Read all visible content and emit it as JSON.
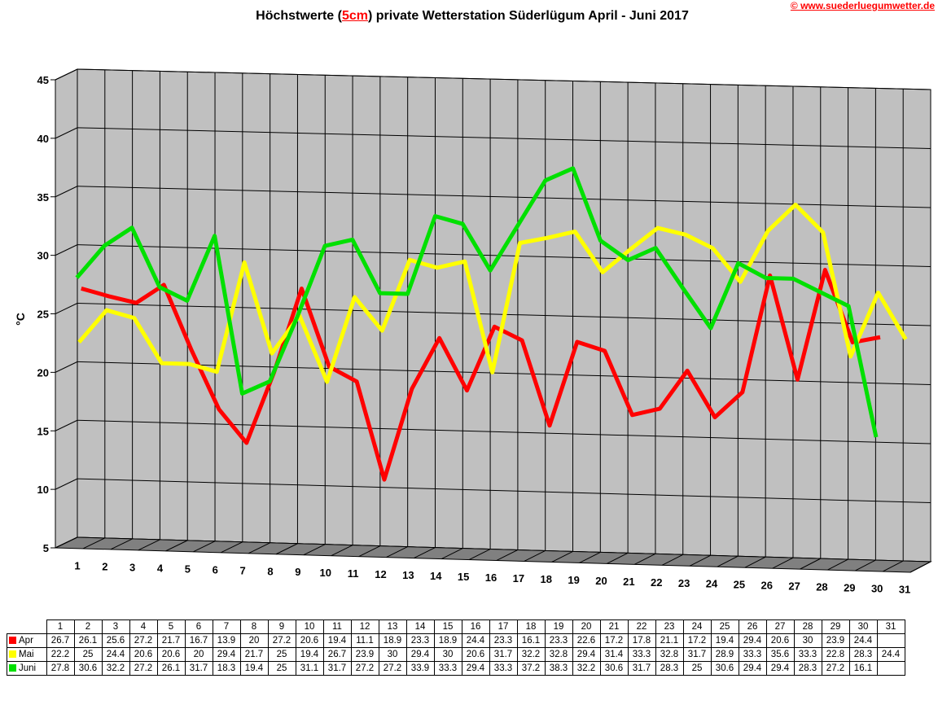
{
  "title_parts": {
    "before": "Höchstwerte (",
    "highlight": "5cm",
    "after": ") private Wetterstation Süderlügum April - Juni 2017"
  },
  "copyright": "© www.suederluegumwetter.de",
  "chart_data": {
    "type": "line",
    "title": "Höchstwerte (5cm) private Wetterstation Süderlügum April - Juni 2017",
    "ylabel": "°C",
    "xlabel": "",
    "ylim": [
      5,
      45
    ],
    "yticks": [
      5,
      10,
      15,
      20,
      25,
      30,
      35,
      40,
      45
    ],
    "grid": true,
    "categories": [
      "1",
      "2",
      "3",
      "4",
      "5",
      "6",
      "7",
      "8",
      "9",
      "10",
      "11",
      "12",
      "13",
      "14",
      "15",
      "16",
      "17",
      "18",
      "19",
      "20",
      "21",
      "22",
      "23",
      "24",
      "25",
      "26",
      "27",
      "28",
      "29",
      "30",
      "31"
    ],
    "series": [
      {
        "name": "Apr",
        "color": "#ff0000",
        "values": [
          26.7,
          26.1,
          25.6,
          27.2,
          21.7,
          16.7,
          13.9,
          20,
          27.2,
          20.6,
          19.4,
          11.1,
          18.9,
          23.3,
          18.9,
          24.4,
          23.3,
          16.1,
          23.3,
          22.6,
          17.2,
          17.8,
          21.1,
          17.2,
          19.4,
          29.4,
          20.6,
          30,
          23.9,
          24.4,
          null
        ]
      },
      {
        "name": "Mai",
        "color": "#ffff00",
        "values": [
          22.2,
          25,
          24.4,
          20.6,
          20.6,
          20,
          29.4,
          21.7,
          25,
          19.4,
          26.7,
          23.9,
          30,
          29.4,
          30,
          20.6,
          31.7,
          32.2,
          32.8,
          29.4,
          31.4,
          33.3,
          32.8,
          31.7,
          28.9,
          33.3,
          35.6,
          33.3,
          22.8,
          28.3,
          24.4
        ]
      },
      {
        "name": "Juni",
        "color": "#00e000",
        "values": [
          27.8,
          30.6,
          32.2,
          27.2,
          26.1,
          31.7,
          18.3,
          19.4,
          25,
          31.1,
          31.7,
          27.2,
          27.2,
          33.9,
          33.3,
          29.4,
          33.3,
          37.2,
          38.3,
          32.2,
          30.6,
          31.7,
          28.3,
          25,
          30.6,
          29.4,
          29.4,
          28.3,
          27.2,
          16.1,
          null
        ]
      }
    ]
  },
  "table": {
    "days": [
      "1",
      "2",
      "3",
      "4",
      "5",
      "6",
      "7",
      "8",
      "9",
      "10",
      "11",
      "12",
      "13",
      "14",
      "15",
      "16",
      "17",
      "18",
      "19",
      "20",
      "21",
      "22",
      "23",
      "24",
      "25",
      "26",
      "27",
      "28",
      "29",
      "30",
      "31"
    ],
    "rows": [
      {
        "label": "Apr",
        "color": "#ff0000",
        "cells": [
          "26.7",
          "26.1",
          "25.6",
          "27.2",
          "21.7",
          "16.7",
          "13.9",
          "20",
          "27.2",
          "20.6",
          "19.4",
          "11.1",
          "18.9",
          "23.3",
          "18.9",
          "24.4",
          "23.3",
          "16.1",
          "23.3",
          "22.6",
          "17.2",
          "17.8",
          "21.1",
          "17.2",
          "19.4",
          "29.4",
          "20.6",
          "30",
          "23.9",
          "24.4",
          ""
        ]
      },
      {
        "label": "Mai",
        "color": "#ffff00",
        "cells": [
          "22.2",
          "25",
          "24.4",
          "20.6",
          "20.6",
          "20",
          "29.4",
          "21.7",
          "25",
          "19.4",
          "26.7",
          "23.9",
          "30",
          "29.4",
          "30",
          "20.6",
          "31.7",
          "32.2",
          "32.8",
          "29.4",
          "31.4",
          "33.3",
          "32.8",
          "31.7",
          "28.9",
          "33.3",
          "35.6",
          "33.3",
          "22.8",
          "28.3",
          "24.4"
        ]
      },
      {
        "label": "Juni",
        "color": "#00e000",
        "cells": [
          "27.8",
          "30.6",
          "32.2",
          "27.2",
          "26.1",
          "31.7",
          "18.3",
          "19.4",
          "25",
          "31.1",
          "31.7",
          "27.2",
          "27.2",
          "33.9",
          "33.3",
          "29.4",
          "33.3",
          "37.2",
          "38.3",
          "32.2",
          "30.6",
          "31.7",
          "28.3",
          "25",
          "30.6",
          "29.4",
          "29.4",
          "28.3",
          "27.2",
          "16.1",
          ""
        ]
      }
    ]
  }
}
